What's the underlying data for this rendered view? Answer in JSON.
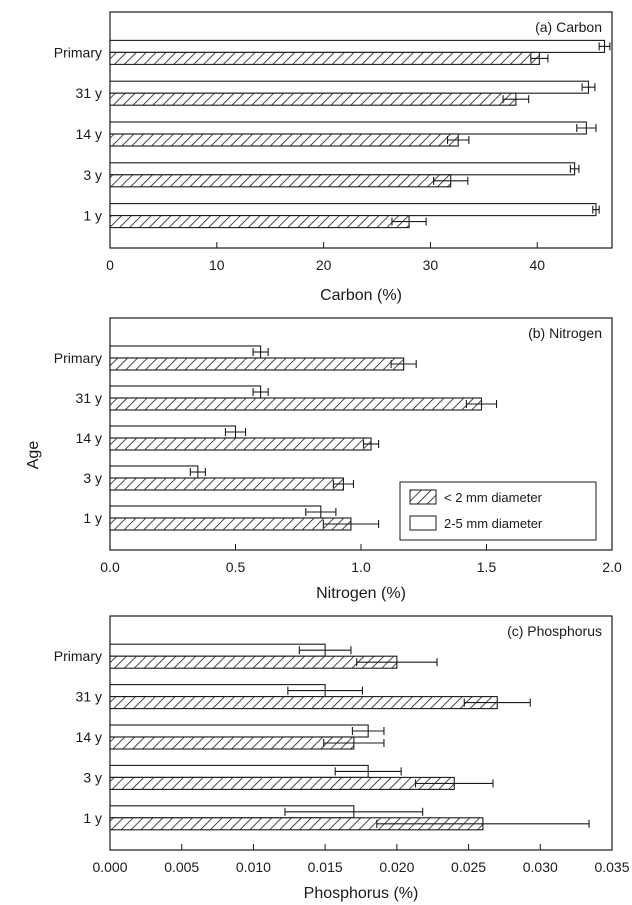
{
  "figure": {
    "shared_ylabel": "Age",
    "legend": {
      "entries": [
        {
          "label": "< 2 mm diameter",
          "pattern": "hatch"
        },
        {
          "label": "2-5 mm diameter",
          "pattern": "open"
        }
      ],
      "placement": "lower-right of panel (b)"
    }
  },
  "chart_data": [
    {
      "type": "bar",
      "orientation": "horizontal",
      "title": "(a) Carbon",
      "xlabel": "Carbon (%)",
      "ylabel": "Age",
      "categories": [
        "Primary",
        "31 y",
        "14 y",
        "3 y",
        "1 y"
      ],
      "xlim": [
        0,
        47
      ],
      "xticks": [
        0,
        10,
        20,
        30,
        40
      ],
      "xtick_labels": [
        "0",
        "10",
        "20",
        "30",
        "40"
      ],
      "grid": false,
      "series": [
        {
          "name": "2-5 mm diameter",
          "pattern": "open",
          "values": [
            46.3,
            44.8,
            44.6,
            43.5,
            45.5
          ],
          "errors": [
            0.5,
            0.6,
            0.9,
            0.4,
            0.3
          ]
        },
        {
          "name": "< 2 mm diameter",
          "pattern": "hatch",
          "values": [
            40.2,
            38.0,
            32.6,
            31.9,
            28.0
          ],
          "errors": [
            0.8,
            1.2,
            1.0,
            1.6,
            1.6
          ]
        }
      ]
    },
    {
      "type": "bar",
      "orientation": "horizontal",
      "title": "(b) Nitrogen",
      "xlabel": "Nitrogen (%)",
      "ylabel": "Age",
      "categories": [
        "Primary",
        "31 y",
        "14 y",
        "3 y",
        "1 y"
      ],
      "xlim": [
        0,
        2.0
      ],
      "xticks": [
        0,
        0.5,
        1.0,
        1.5,
        2.0
      ],
      "xtick_labels": [
        "0.0",
        "0.5",
        "1.0",
        "1.5",
        "2.0"
      ],
      "grid": false,
      "series": [
        {
          "name": "2-5 mm diameter",
          "pattern": "open",
          "values": [
            0.6,
            0.6,
            0.5,
            0.35,
            0.84
          ],
          "errors": [
            0.03,
            0.03,
            0.04,
            0.03,
            0.06
          ]
        },
        {
          "name": "< 2 mm diameter",
          "pattern": "hatch",
          "values": [
            1.17,
            1.48,
            1.04,
            0.93,
            0.96
          ],
          "errors": [
            0.05,
            0.06,
            0.03,
            0.04,
            0.11
          ]
        }
      ]
    },
    {
      "type": "bar",
      "orientation": "horizontal",
      "title": "(c) Phosphorus",
      "xlabel": "Phosphorus (%)",
      "ylabel": "Age",
      "categories": [
        "Primary",
        "31 y",
        "14 y",
        "3 y",
        "1 y"
      ],
      "xlim": [
        0,
        0.035
      ],
      "xticks": [
        0,
        0.005,
        0.01,
        0.015,
        0.02,
        0.025,
        0.03,
        0.035
      ],
      "xtick_labels": [
        "0.000",
        "0.005",
        "0.010",
        "0.015",
        "0.020",
        "0.025",
        "0.030",
        "0.035"
      ],
      "grid": false,
      "series": [
        {
          "name": "2-5 mm diameter",
          "pattern": "open",
          "values": [
            0.015,
            0.015,
            0.018,
            0.018,
            0.017
          ],
          "errors": [
            0.0018,
            0.0026,
            0.0011,
            0.0023,
            0.0048
          ]
        },
        {
          "name": "< 2 mm diameter",
          "pattern": "hatch",
          "values": [
            0.02,
            0.027,
            0.017,
            0.024,
            0.026
          ],
          "errors": [
            0.0028,
            0.0023,
            0.0021,
            0.0027,
            0.0074
          ]
        }
      ]
    }
  ]
}
